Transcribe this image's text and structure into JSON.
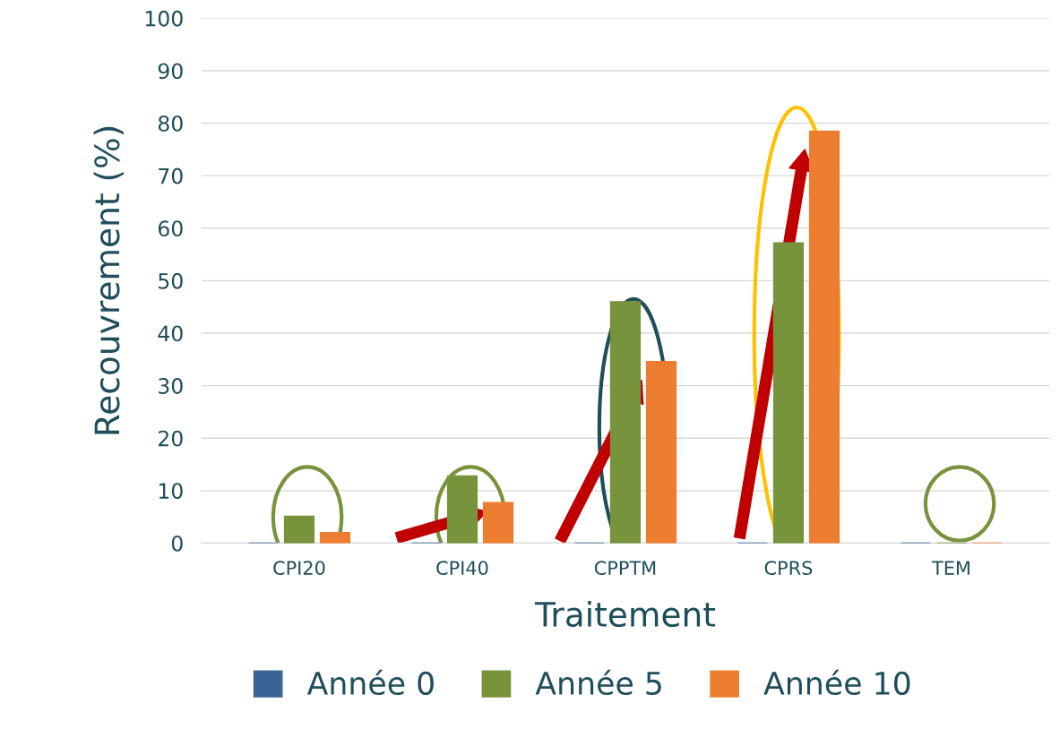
{
  "chart_data": {
    "type": "bar",
    "xlabel": "Traitement",
    "ylabel": "Recouvrement (%)",
    "categories": [
      "CPI20",
      "CPI40",
      "CPPTM",
      "CPRS",
      "TEM"
    ],
    "series": [
      {
        "name": "Année 0",
        "color": "#3b6494",
        "values": [
          0,
          0,
          0,
          0,
          0
        ]
      },
      {
        "name": "Année 5",
        "color": "#77933c",
        "values": [
          5.1,
          12.8,
          46.0,
          57.2,
          0
        ]
      },
      {
        "name": "Année 10",
        "color": "#ed7d31",
        "values": [
          2.0,
          7.7,
          34.6,
          78.5,
          0
        ]
      }
    ],
    "ylim": [
      0,
      100
    ],
    "yticks": [
      0,
      10,
      20,
      30,
      40,
      50,
      60,
      70,
      80,
      90,
      100
    ],
    "grid": "y",
    "legend": "bottom"
  }
}
